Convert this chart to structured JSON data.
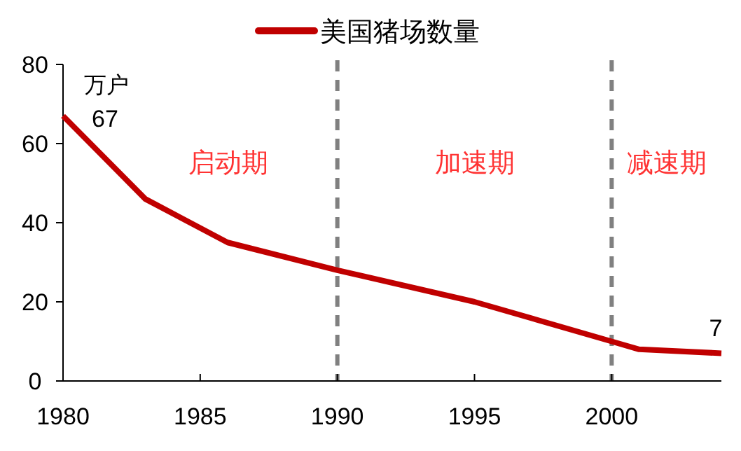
{
  "chart_data": {
    "type": "line",
    "legend": "top",
    "grid": false,
    "marker": "none",
    "line_style": "solid",
    "x": [
      1980,
      1983,
      1986,
      1990,
      1995,
      2000,
      2001,
      2004
    ],
    "series": [
      {
        "name": "美国猪场数量",
        "color": "#c00000",
        "values": [
          67,
          46,
          35,
          28,
          20,
          10,
          8,
          7
        ],
        "value_labels": [
          "67",
          null,
          null,
          null,
          null,
          null,
          null,
          "7"
        ]
      }
    ],
    "xlim": [
      1980,
      2004
    ],
    "xticks": [
      1980,
      1985,
      1990,
      1995,
      2000
    ],
    "ylim": [
      0,
      80
    ],
    "yticks": [
      0,
      20,
      40,
      60,
      80
    ],
    "ref_lines": [
      {
        "axis": "x",
        "value": 1990,
        "color": "#808080",
        "line_style": "dashed"
      },
      {
        "axis": "x",
        "value": 2000,
        "color": "#808080",
        "line_style": "dashed"
      }
    ],
    "annotations": [
      "万户",
      "启动期",
      "加速期",
      "减速期"
    ]
  }
}
